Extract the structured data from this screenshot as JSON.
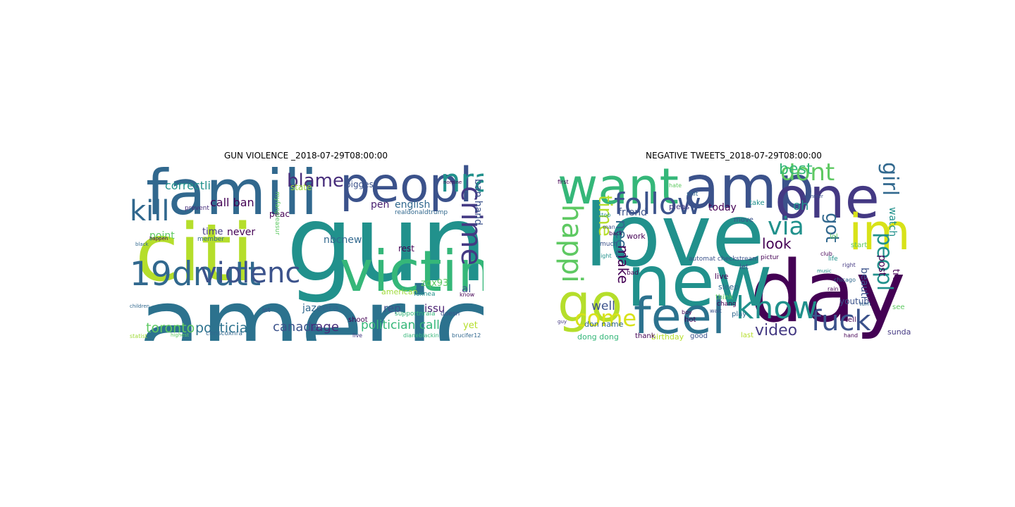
{
  "chart_data": [
    {
      "type": "wordcloud",
      "title": "GUN VIOLENCE _2018-07-29T08:00:00",
      "words": [
        {
          "text": "gun",
          "weight": 1.0,
          "color": "#21918c"
        },
        {
          "text": "america",
          "weight": 0.95,
          "color": "#2c728e"
        },
        {
          "text": "citi",
          "weight": 0.92,
          "color": "#b5de2b"
        },
        {
          "text": "famili",
          "weight": 0.8,
          "color": "#31688e"
        },
        {
          "text": "victim",
          "weight": 0.7,
          "color": "#35b779"
        },
        {
          "text": "peopl",
          "weight": 0.55,
          "color": "#3b528b"
        },
        {
          "text": "19dnutt",
          "weight": 0.5,
          "color": "#31688e"
        },
        {
          "text": "violenc",
          "weight": 0.46,
          "color": "#3b528b"
        },
        {
          "text": "kill",
          "weight": 0.4,
          "color": "#31688e"
        },
        {
          "text": "nra",
          "weight": 0.38,
          "color": "#21918c"
        },
        {
          "text": "crime",
          "weight": 0.36,
          "color": "#443983",
          "vertical": true
        },
        {
          "text": "blame",
          "weight": 0.24,
          "color": "#472d7b"
        },
        {
          "text": "toronto",
          "weight": 0.2,
          "color": "#5ec962"
        },
        {
          "text": "politician",
          "weight": 0.2,
          "color": "#2c728e"
        },
        {
          "text": "canada",
          "weight": 0.19,
          "color": "#3b528b"
        },
        {
          "text": "rage",
          "weight": 0.19,
          "color": "#472d7b"
        },
        {
          "text": "politician call",
          "weight": 0.19,
          "color": "#35b779"
        },
        {
          "text": "correctli",
          "weight": 0.15,
          "color": "#21918c"
        },
        {
          "text": "call ban",
          "weight": 0.15,
          "color": "#440154"
        },
        {
          "text": "ban hand",
          "weight": 0.15,
          "color": "#3b528b",
          "vertical": true
        },
        {
          "text": "english",
          "weight": 0.13,
          "color": "#31688e"
        },
        {
          "text": "biggest",
          "weight": 0.12,
          "color": "#3b528b"
        },
        {
          "text": "pen",
          "weight": 0.13,
          "color": "#481f70"
        },
        {
          "text": "point",
          "weight": 0.13,
          "color": "#5ec962"
        },
        {
          "text": "time",
          "weight": 0.12,
          "color": "#443983"
        },
        {
          "text": "never",
          "weight": 0.12,
          "color": "#440154"
        },
        {
          "text": "nbcnew",
          "weight": 0.14,
          "color": "#31688e"
        },
        {
          "text": "jazeera",
          "weight": 0.14,
          "color": "#31688e"
        },
        {
          "text": "zqx93",
          "weight": 0.12,
          "color": "#5ec962"
        },
        {
          "text": "rest",
          "weight": 0.12,
          "color": "#440154"
        },
        {
          "text": "al",
          "weight": 0.15,
          "color": "#3b528b"
        },
        {
          "text": "rep",
          "weight": 0.14,
          "color": "#3b528b"
        },
        {
          "text": "issu",
          "weight": 0.14,
          "color": "#481f70"
        },
        {
          "text": "yet",
          "weight": 0.12,
          "color": "#b5de2b"
        },
        {
          "text": "state",
          "weight": 0.1,
          "color": "#9fda3a"
        },
        {
          "text": "peac",
          "weight": 0.1,
          "color": "#440154"
        },
        {
          "text": "myfanpleasur",
          "weight": 0.1,
          "color": "#5ec962",
          "vertical": true
        },
        {
          "text": "prevent",
          "weight": 0.07,
          "color": "#472d7b"
        },
        {
          "text": "chriscoxnra",
          "weight": 0.07,
          "color": "#31688e"
        },
        {
          "text": "shoot",
          "weight": 0.07,
          "color": "#440154"
        },
        {
          "text": "american",
          "weight": 0.07,
          "color": "#9fda3a"
        },
        {
          "text": "member",
          "weight": 0.07,
          "color": "#31688e"
        },
        {
          "text": "supportnraia",
          "weight": 0.07,
          "color": "#35b779"
        },
        {
          "text": "doesn",
          "weight": 0.07,
          "color": "#3b528b"
        },
        {
          "text": "foxnea",
          "weight": 0.06,
          "color": "#21918c"
        },
        {
          "text": "brucifer12",
          "weight": 0.06,
          "color": "#31688e"
        },
        {
          "text": "dianeblackin",
          "weight": 0.06,
          "color": "#35b779"
        },
        {
          "text": "realdonaldtrump",
          "weight": 0.06,
          "color": "#31688e"
        },
        {
          "text": "nomine",
          "weight": 0.06,
          "color": "#440154"
        },
        {
          "text": "statist",
          "weight": 0.06,
          "color": "#9fda3a"
        },
        {
          "text": "live",
          "weight": 0.06,
          "color": "#443983"
        },
        {
          "text": "let",
          "weight": 0.06,
          "color": "#3b528b"
        },
        {
          "text": "know",
          "weight": 0.06,
          "color": "#440154"
        },
        {
          "text": "highest",
          "weight": 0.05,
          "color": "#5ec962"
        },
        {
          "text": "children",
          "weight": 0.05,
          "color": "#31688e"
        },
        {
          "text": "happen",
          "weight": 0.05,
          "color": "#440154"
        },
        {
          "text": "black",
          "weight": 0.05,
          "color": "#31688e"
        }
      ]
    },
    {
      "type": "wordcloud",
      "title": "NEGATIVE TWEETS_2018-07-29T08:00:00",
      "words": [
        {
          "text": "love",
          "weight": 1.0,
          "color": "#21918c"
        },
        {
          "text": "day",
          "weight": 0.98,
          "color": "#440154"
        },
        {
          "text": "new",
          "weight": 0.9,
          "color": "#21918c"
        },
        {
          "text": "amp",
          "weight": 0.8,
          "color": "#3b528b"
        },
        {
          "text": "one",
          "weight": 0.78,
          "color": "#443983"
        },
        {
          "text": "want",
          "weight": 0.7,
          "color": "#35b779"
        },
        {
          "text": "go",
          "weight": 0.68,
          "color": "#b5de2b"
        },
        {
          "text": "feel",
          "weight": 0.64,
          "color": "#2c728e"
        },
        {
          "text": "im",
          "weight": 0.6,
          "color": "#d8e219"
        },
        {
          "text": "follow",
          "weight": 0.45,
          "color": "#3b528b"
        },
        {
          "text": "know",
          "weight": 0.42,
          "color": "#21918c"
        },
        {
          "text": "fuck",
          "weight": 0.4,
          "color": "#3b528b"
        },
        {
          "text": "happi",
          "weight": 0.4,
          "color": "#5ec962",
          "vertical": true
        },
        {
          "text": "come",
          "weight": 0.32,
          "color": "#d8e219"
        },
        {
          "text": "via",
          "weight": 0.36,
          "color": "#21918c"
        },
        {
          "text": "dont",
          "weight": 0.3,
          "color": "#5ec962"
        },
        {
          "text": "girl",
          "weight": 0.3,
          "color": "#31688e",
          "vertical": true
        },
        {
          "text": "peopl",
          "weight": 0.3,
          "color": "#21918c",
          "vertical": true
        },
        {
          "text": "got",
          "weight": 0.26,
          "color": "#31688e",
          "vertical": true
        },
        {
          "text": "time",
          "weight": 0.26,
          "color": "#b5de2b",
          "vertical": true
        },
        {
          "text": "video",
          "weight": 0.22,
          "color": "#443983"
        },
        {
          "text": "best",
          "weight": 0.22,
          "color": "#35b779"
        },
        {
          "text": "need",
          "weight": 0.2,
          "color": "#31688e",
          "vertical": true
        },
        {
          "text": "make",
          "weight": 0.18,
          "color": "#440154",
          "vertical": true
        },
        {
          "text": "look",
          "weight": 0.18,
          "color": "#440154"
        },
        {
          "text": "well",
          "weight": 0.17,
          "color": "#3b528b"
        },
        {
          "text": "oh",
          "weight": 0.18,
          "color": "#21918c"
        },
        {
          "text": "today",
          "weight": 0.14,
          "color": "#440154"
        },
        {
          "text": "watch",
          "weight": 0.14,
          "color": "#21918c",
          "vertical": true
        },
        {
          "text": "true",
          "weight": 0.13,
          "color": "#440154",
          "vertical": true
        },
        {
          "text": "post",
          "weight": 0.13,
          "color": "#440154",
          "vertical": true
        },
        {
          "text": "beauti",
          "weight": 0.12,
          "color": "#3b528b",
          "vertical": true
        },
        {
          "text": "friend",
          "weight": 0.12,
          "color": "#3b528b"
        },
        {
          "text": "birthday",
          "weight": 0.1,
          "color": "#b5de2b"
        },
        {
          "text": "dong dong",
          "weight": 0.1,
          "color": "#35b779"
        },
        {
          "text": "don name",
          "weight": 0.09,
          "color": "#31688e"
        },
        {
          "text": "work",
          "weight": 0.09,
          "color": "#440154"
        },
        {
          "text": "live",
          "weight": 0.09,
          "color": "#440154"
        },
        {
          "text": "sleep",
          "weight": 0.09,
          "color": "#31688e"
        },
        {
          "text": "pleas",
          "weight": 0.09,
          "color": "#443983"
        },
        {
          "text": "youtub",
          "weight": 0.09,
          "color": "#3b528b"
        },
        {
          "text": "sunday",
          "weight": 0.08,
          "color": "#443983"
        },
        {
          "text": "automat checkstream",
          "weight": 0.07,
          "color": "#3b528b"
        },
        {
          "text": "thank",
          "weight": 0.08,
          "color": "#440154"
        },
        {
          "text": "good",
          "weight": 0.08,
          "color": "#3b528b"
        },
        {
          "text": "last",
          "weight": 0.08,
          "color": "#b5de2b"
        },
        {
          "text": "play",
          "weight": 0.08,
          "color": "#31688e"
        },
        {
          "text": "move",
          "weight": 0.07,
          "color": "#3b528b"
        },
        {
          "text": "take",
          "weight": 0.07,
          "color": "#21918c"
        },
        {
          "text": "tell",
          "weight": 0.07,
          "color": "#440154"
        },
        {
          "text": "lol",
          "weight": 0.07,
          "color": "#5ec962"
        },
        {
          "text": "think",
          "weight": 0.07,
          "color": "#5ec962"
        },
        {
          "text": "hot",
          "weight": 0.07,
          "color": "#440154"
        },
        {
          "text": "let",
          "weight": 0.07,
          "color": "#3b528b"
        },
        {
          "text": "start",
          "weight": 0.07,
          "color": "#5ec962"
        },
        {
          "text": "club",
          "weight": 0.06,
          "color": "#440154"
        },
        {
          "text": "chicago",
          "weight": 0.05,
          "color": "#31688e"
        },
        {
          "text": "see",
          "weight": 0.07,
          "color": "#5ec962"
        },
        {
          "text": "shit",
          "weight": 0.06,
          "color": "#31688e"
        },
        {
          "text": "bad",
          "weight": 0.06,
          "color": "#440154"
        },
        {
          "text": "much",
          "weight": 0.06,
          "color": "#3b528b"
        },
        {
          "text": "night",
          "weight": 0.05,
          "color": "#21918c"
        },
        {
          "text": "first",
          "weight": 0.05,
          "color": "#440154"
        },
        {
          "text": "hate",
          "weight": 0.05,
          "color": "#5ec962"
        },
        {
          "text": "stop",
          "weight": 0.05,
          "color": "#21918c"
        },
        {
          "text": "back",
          "weight": 0.05,
          "color": "#440154"
        },
        {
          "text": "man",
          "weight": 0.05,
          "color": "#3b528b"
        },
        {
          "text": "right",
          "weight": 0.05,
          "color": "#443983"
        },
        {
          "text": "life",
          "weight": 0.05,
          "color": "#21918c"
        },
        {
          "text": "turn",
          "weight": 0.05,
          "color": "#31688e"
        },
        {
          "text": "hand",
          "weight": 0.05,
          "color": "#440154"
        },
        {
          "text": "guy",
          "weight": 0.05,
          "color": "#443983"
        },
        {
          "text": "boy",
          "weight": 0.05,
          "color": "#440154"
        },
        {
          "text": "wait",
          "weight": 0.05,
          "color": "#3b528b"
        },
        {
          "text": "rain",
          "weight": 0.05,
          "color": "#440154"
        },
        {
          "text": "music",
          "weight": 0.04,
          "color": "#21918c"
        },
        {
          "text": "summer",
          "weight": 0.04,
          "color": "#3b528b"
        },
        {
          "text": "chang",
          "weight": 0.05,
          "color": "#440154"
        },
        {
          "text": "pictur",
          "weight": 0.05,
          "color": "#440154"
        }
      ]
    }
  ]
}
